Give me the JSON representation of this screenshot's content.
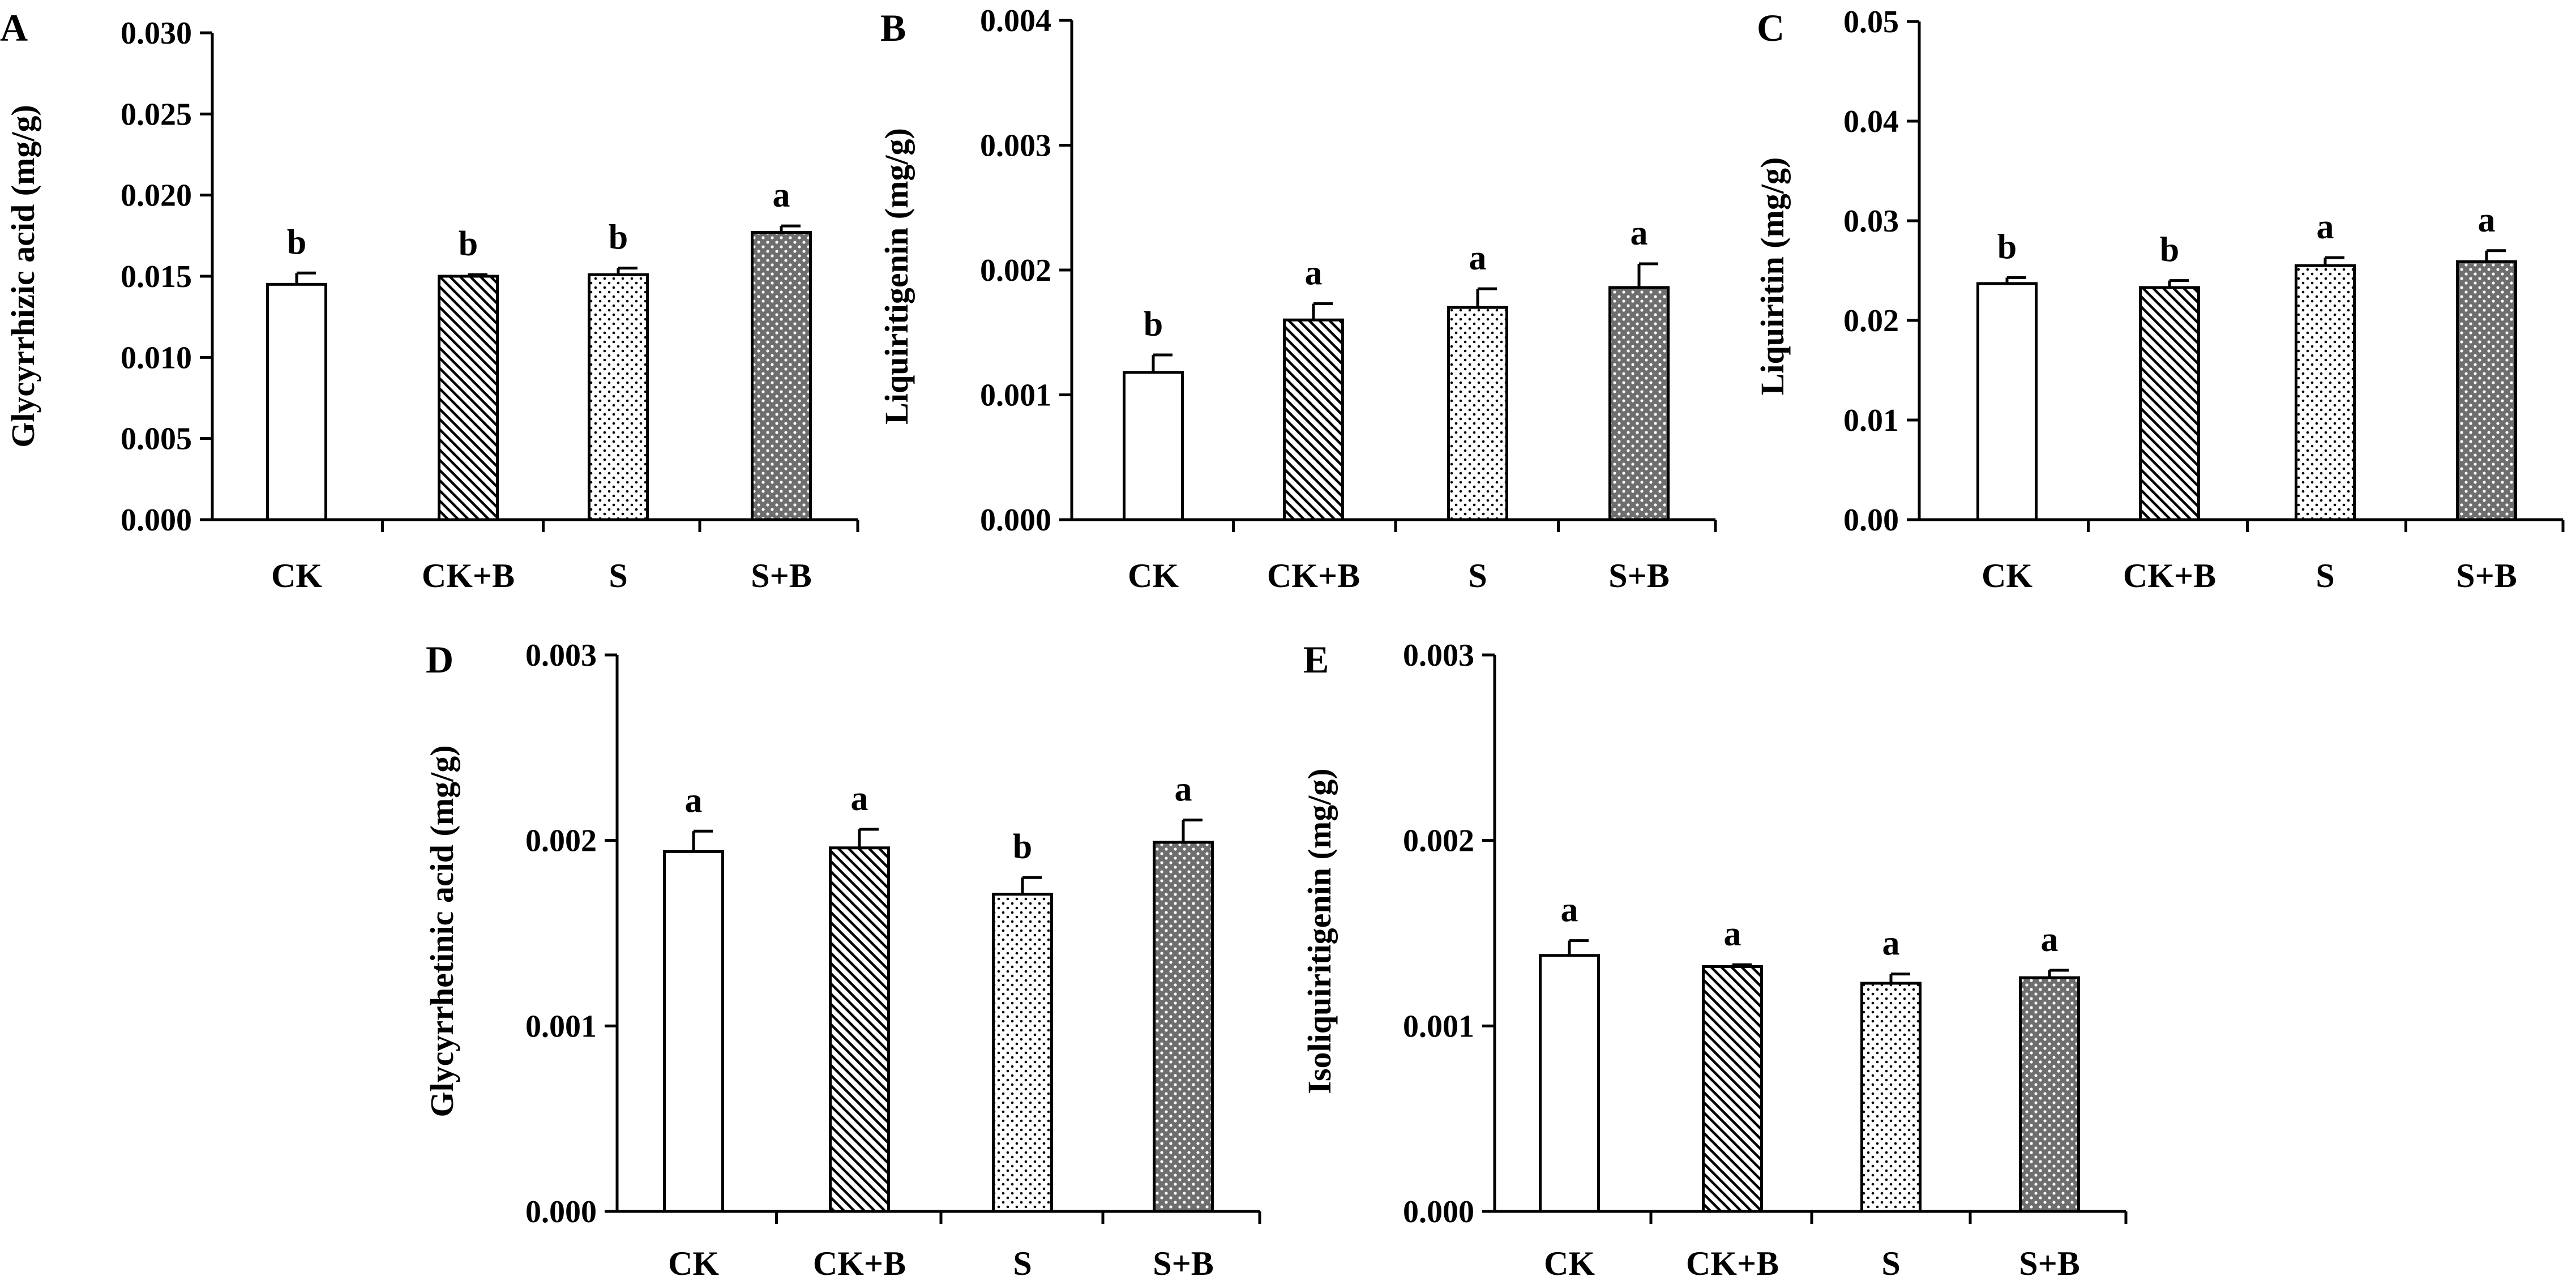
{
  "figure": {
    "panel_count": 5
  },
  "colors": {
    "axis": "#000000",
    "bar_fill": "#ffffff",
    "bar_stroke": "#000000",
    "dense_dot_bg": "#6e6e6e"
  },
  "patterns": [
    "none",
    "diagonal-hatch",
    "sparse-dots",
    "dense-dots"
  ],
  "chart_data": [
    {
      "panel": "A",
      "type": "bar",
      "ylabel": "Glycyrrhizic acid (mg/g)",
      "categories": [
        "CK",
        "CK+B",
        "S",
        "S+B"
      ],
      "values": [
        0.0145,
        0.015,
        0.0151,
        0.0177
      ],
      "errors": [
        0.0007,
        0.0001,
        0.0004,
        0.0004
      ],
      "letters": [
        "b",
        "b",
        "b",
        "a"
      ],
      "ylim": [
        0,
        0.03
      ],
      "yticks": [
        "0.000",
        "0.005",
        "0.010",
        "0.015",
        "0.020",
        "0.025",
        "0.030"
      ]
    },
    {
      "panel": "B",
      "type": "bar",
      "ylabel": "Liquiritigenin (mg/g)",
      "categories": [
        "CK",
        "CK+B",
        "S",
        "S+B"
      ],
      "values": [
        0.00118,
        0.0016,
        0.0017,
        0.00186
      ],
      "errors": [
        0.00014,
        0.00013,
        0.00015,
        0.00019
      ],
      "letters": [
        "b",
        "a",
        "a",
        "a"
      ],
      "ylim": [
        0,
        0.004
      ],
      "yticks": [
        "0.000",
        "0.001",
        "0.002",
        "0.003",
        "0.004"
      ]
    },
    {
      "panel": "C",
      "type": "bar",
      "ylabel": "Liquiritin (mg/g)",
      "categories": [
        "CK",
        "CK+B",
        "S",
        "S+B"
      ],
      "values": [
        0.0237,
        0.0233,
        0.0255,
        0.0259
      ],
      "errors": [
        0.0006,
        0.0007,
        0.0008,
        0.0011
      ],
      "letters": [
        "b",
        "b",
        "a",
        "a"
      ],
      "ylim": [
        0,
        0.05
      ],
      "yticks": [
        "0.00",
        "0.01",
        "0.02",
        "0.03",
        "0.04",
        "0.05"
      ]
    },
    {
      "panel": "D",
      "type": "bar",
      "ylabel": "Glycyrrhetinic acid (mg/g)",
      "categories": [
        "CK",
        "CK+B",
        "S",
        "S+B"
      ],
      "values": [
        0.00194,
        0.00196,
        0.00171,
        0.00199
      ],
      "errors": [
        0.00011,
        0.0001,
        9e-05,
        0.00012
      ],
      "letters": [
        "a",
        "a",
        "b",
        "a"
      ],
      "ylim": [
        0,
        0.003
      ],
      "yticks": [
        "0.000",
        "0.001",
        "0.002",
        "0.003"
      ]
    },
    {
      "panel": "E",
      "type": "bar",
      "ylabel": "Isoliquiritigenin (mg/g)",
      "categories": [
        "CK",
        "CK+B",
        "S",
        "S+B"
      ],
      "values": [
        0.00138,
        0.00132,
        0.00123,
        0.00126
      ],
      "errors": [
        8e-05,
        1e-05,
        5e-05,
        4e-05
      ],
      "letters": [
        "a",
        "a",
        "a",
        "a"
      ],
      "ylim": [
        0,
        0.003
      ],
      "yticks": [
        "0.000",
        "0.001",
        "0.002",
        "0.003"
      ]
    }
  ]
}
